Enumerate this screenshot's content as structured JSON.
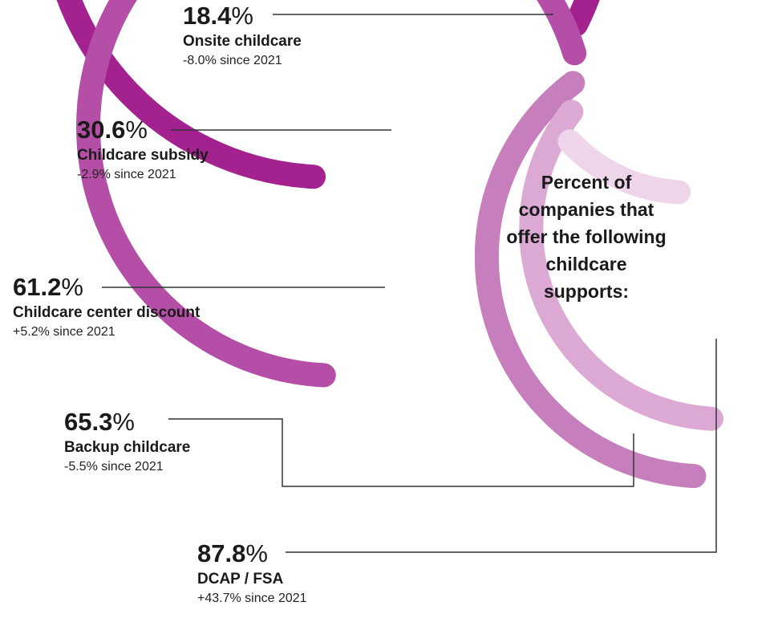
{
  "chart_data": {
    "type": "radial-bar",
    "title": "Percent of companies that offer the following childcare supports:",
    "series": [
      {
        "label": "Onsite childcare",
        "value": 18.4,
        "value_text": "18.4",
        "change_text": "-8.0% since 2021",
        "color": "#a3228f"
      },
      {
        "label": "Childcare subsidy",
        "value": 30.6,
        "value_text": "30.6",
        "change_text": "-2.9% since 2021",
        "color": "#b54ea6"
      },
      {
        "label": "Childcare center discount",
        "value": 61.2,
        "value_text": "61.2",
        "change_text": "+5.2% since 2021",
        "color": "#c77ebd"
      },
      {
        "label": "Backup childcare",
        "value": 65.3,
        "value_text": "65.3",
        "change_text": "-5.5% since 2021",
        "color": "#dca8d4"
      },
      {
        "label": "DCAP / FSA",
        "value": 87.8,
        "value_text": "87.8",
        "change_text": "+43.7% since 2021",
        "color": "#eed5ea"
      }
    ],
    "percent_sign": "%"
  }
}
